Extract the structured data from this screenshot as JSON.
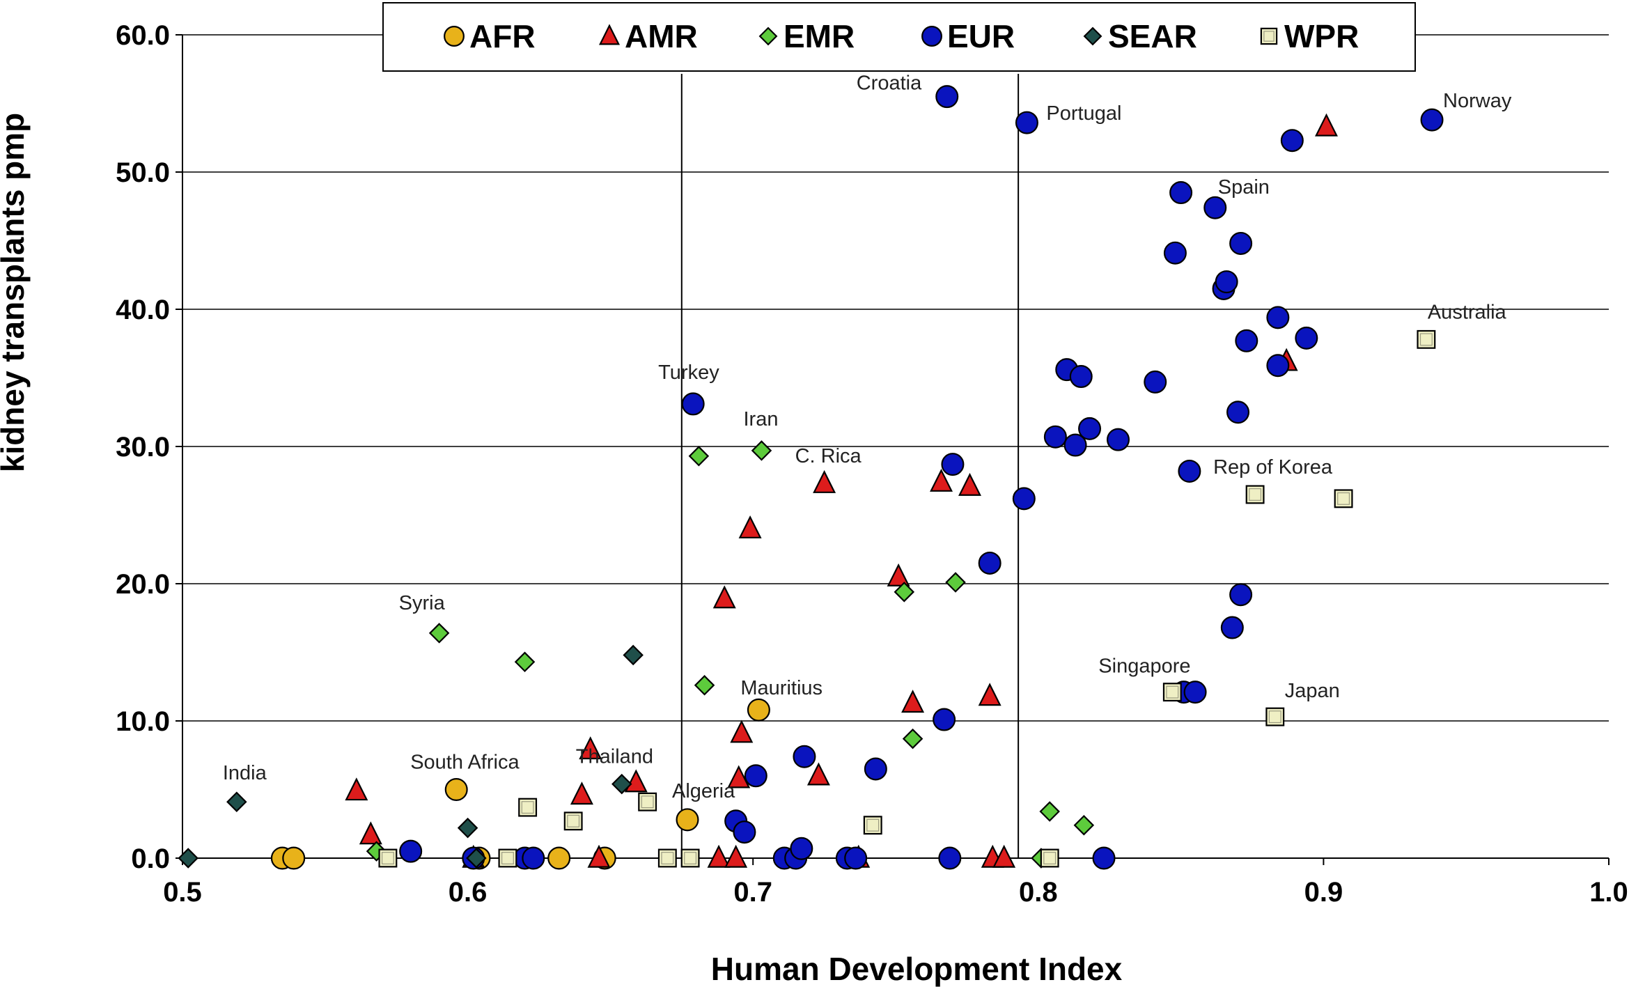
{
  "chart_data": {
    "type": "scatter",
    "xlabel": "Human Development Index",
    "ylabel": "kidney transplants pmp",
    "xlim": [
      0.5,
      1.0
    ],
    "ylim": [
      0,
      60
    ],
    "xticks": [
      "0.5",
      "0.6",
      "0.7",
      "0.8",
      "0.9",
      "1.0"
    ],
    "yticks": [
      "0.0",
      "10.0",
      "20.0",
      "30.0",
      "40.0",
      "50.0",
      "60.0"
    ],
    "xtick_values": [
      0.5,
      0.6,
      0.7,
      0.8,
      0.9,
      1.0
    ],
    "ytick_values": [
      0,
      10,
      20,
      30,
      40,
      50,
      60
    ],
    "grid": "horizontal",
    "vlines": [
      0.675,
      0.793
    ],
    "legend_position": "top-center",
    "series": [
      {
        "name": "AFR",
        "marker": "circle",
        "color": "#E8B21A",
        "points": [
          [
            0.535,
            0
          ],
          [
            0.539,
            0
          ],
          [
            0.596,
            5.0
          ],
          [
            0.604,
            0
          ],
          [
            0.632,
            0
          ],
          [
            0.648,
            0
          ],
          [
            0.677,
            2.8
          ],
          [
            0.702,
            10.8
          ]
        ]
      },
      {
        "name": "AMR",
        "marker": "triangle",
        "color": "#DD1C1C",
        "points": [
          [
            0.561,
            4.9
          ],
          [
            0.566,
            1.7
          ],
          [
            0.602,
            0
          ],
          [
            0.64,
            4.6
          ],
          [
            0.643,
            7.9
          ],
          [
            0.646,
            0
          ],
          [
            0.659,
            5.5
          ],
          [
            0.688,
            0
          ],
          [
            0.69,
            18.9
          ],
          [
            0.694,
            0
          ],
          [
            0.695,
            5.8
          ],
          [
            0.696,
            9.1
          ],
          [
            0.699,
            24.0
          ],
          [
            0.723,
            6.0
          ],
          [
            0.725,
            27.3
          ],
          [
            0.737,
            0
          ],
          [
            0.751,
            20.5
          ],
          [
            0.756,
            11.3
          ],
          [
            0.766,
            27.4
          ],
          [
            0.776,
            27.1
          ],
          [
            0.783,
            11.8
          ],
          [
            0.784,
            0
          ],
          [
            0.788,
            0
          ],
          [
            0.887,
            36.2
          ],
          [
            0.901,
            53.3
          ]
        ]
      },
      {
        "name": "EMR",
        "marker": "diamond",
        "color": "#5DCB3C",
        "points": [
          [
            0.568,
            0.5
          ],
          [
            0.59,
            16.4
          ],
          [
            0.62,
            14.3
          ],
          [
            0.681,
            29.3
          ],
          [
            0.683,
            12.6
          ],
          [
            0.703,
            29.7
          ],
          [
            0.753,
            19.4
          ],
          [
            0.756,
            8.7
          ],
          [
            0.771,
            20.1
          ],
          [
            0.801,
            0
          ],
          [
            0.804,
            3.4
          ],
          [
            0.816,
            2.4
          ]
        ]
      },
      {
        "name": "EUR",
        "marker": "circle",
        "color": "#0A14BE",
        "points": [
          [
            0.58,
            0.5
          ],
          [
            0.602,
            0
          ],
          [
            0.62,
            0
          ],
          [
            0.623,
            0
          ],
          [
            0.679,
            33.1
          ],
          [
            0.694,
            2.7
          ],
          [
            0.697,
            1.9
          ],
          [
            0.701,
            6.0
          ],
          [
            0.711,
            0
          ],
          [
            0.715,
            0
          ],
          [
            0.717,
            0.7
          ],
          [
            0.718,
            7.4
          ],
          [
            0.733,
            0
          ],
          [
            0.736,
            0
          ],
          [
            0.743,
            6.5
          ],
          [
            0.767,
            10.1
          ],
          [
            0.768,
            55.5
          ],
          [
            0.769,
            0
          ],
          [
            0.77,
            28.7
          ],
          [
            0.783,
            21.5
          ],
          [
            0.795,
            26.2
          ],
          [
            0.796,
            53.6
          ],
          [
            0.806,
            30.7
          ],
          [
            0.81,
            35.6
          ],
          [
            0.813,
            30.1
          ],
          [
            0.815,
            35.1
          ],
          [
            0.818,
            31.3
          ],
          [
            0.823,
            0
          ],
          [
            0.828,
            30.5
          ],
          [
            0.841,
            34.7
          ],
          [
            0.848,
            44.1
          ],
          [
            0.85,
            48.5
          ],
          [
            0.851,
            12.1
          ],
          [
            0.853,
            28.2
          ],
          [
            0.855,
            12.1
          ],
          [
            0.862,
            47.4
          ],
          [
            0.865,
            41.5
          ],
          [
            0.866,
            42.0
          ],
          [
            0.868,
            16.8
          ],
          [
            0.87,
            32.5
          ],
          [
            0.871,
            44.8
          ],
          [
            0.871,
            19.2
          ],
          [
            0.873,
            37.7
          ],
          [
            0.884,
            39.4
          ],
          [
            0.884,
            35.9
          ],
          [
            0.889,
            52.3
          ],
          [
            0.894,
            37.9
          ],
          [
            0.938,
            53.8
          ]
        ]
      },
      {
        "name": "SEAR",
        "marker": "diamond",
        "color": "#1F4F4A",
        "points": [
          [
            0.502,
            0
          ],
          [
            0.519,
            4.1
          ],
          [
            0.6,
            2.2
          ],
          [
            0.603,
            0
          ],
          [
            0.654,
            5.4
          ],
          [
            0.658,
            14.8
          ]
        ]
      },
      {
        "name": "WPR",
        "marker": "square",
        "color": "#EFEFC4",
        "points": [
          [
            0.572,
            0
          ],
          [
            0.614,
            0
          ],
          [
            0.621,
            3.7
          ],
          [
            0.637,
            2.7
          ],
          [
            0.663,
            4.1
          ],
          [
            0.67,
            0
          ],
          [
            0.678,
            0
          ],
          [
            0.742,
            2.4
          ],
          [
            0.804,
            0
          ],
          [
            0.847,
            12.1
          ],
          [
            0.876,
            26.5
          ],
          [
            0.883,
            10.3
          ],
          [
            0.907,
            26.2
          ],
          [
            0.936,
            37.8
          ]
        ]
      }
    ],
    "annotations": [
      {
        "text": "India",
        "x": 0.519,
        "y": 4.1
      },
      {
        "text": "Syria",
        "x": 0.59,
        "y": 16.4
      },
      {
        "text": "South Africa",
        "x": 0.596,
        "y": 5.0
      },
      {
        "text": "Thailand",
        "x": 0.654,
        "y": 5.4
      },
      {
        "text": "Algeria",
        "x": 0.677,
        "y": 2.8
      },
      {
        "text": "Turkey",
        "x": 0.679,
        "y": 33.1
      },
      {
        "text": "Iran",
        "x": 0.703,
        "y": 29.7
      },
      {
        "text": "Mauritius",
        "x": 0.702,
        "y": 10.8
      },
      {
        "text": "C. Rica",
        "x": 0.725,
        "y": 27.3
      },
      {
        "text": "Croatia",
        "x": 0.768,
        "y": 55.5
      },
      {
        "text": "Portugal",
        "x": 0.796,
        "y": 53.6
      },
      {
        "text": "Spain",
        "x": 0.862,
        "y": 47.4
      },
      {
        "text": "Norway",
        "x": 0.938,
        "y": 53.8
      },
      {
        "text": "Australia",
        "x": 0.936,
        "y": 37.8
      },
      {
        "text": "Rep of Korea",
        "x": 0.876,
        "y": 26.5
      },
      {
        "text": "Singapore",
        "x": 0.847,
        "y": 12.1
      },
      {
        "text": "Japan",
        "x": 0.883,
        "y": 10.3
      }
    ]
  }
}
